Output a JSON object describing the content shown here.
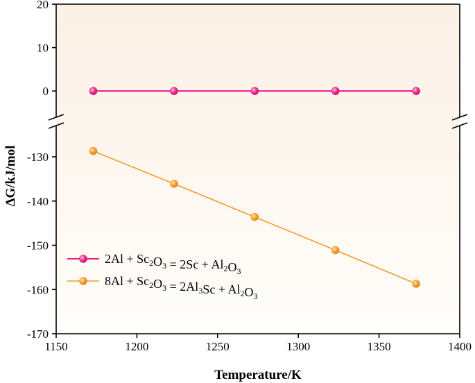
{
  "chart_data": {
    "type": "line",
    "title": "",
    "xlabel": "Temperature/K",
    "ylabel": "ΔG/kJ/mol",
    "xlim": [
      1150,
      1400
    ],
    "x_ticks": [
      1150,
      1200,
      1250,
      1300,
      1350,
      1400
    ],
    "y_axis_broken": true,
    "y_upper_segment": {
      "ylim": [
        -7,
        20
      ],
      "ticks": [
        0,
        10,
        20
      ]
    },
    "y_lower_segment": {
      "ylim": [
        -170,
        -122
      ],
      "ticks": [
        -130,
        -140,
        -150,
        -160,
        -170
      ]
    },
    "grid": false,
    "background": "#fdf6ee",
    "legend_position": "lower-left",
    "series": [
      {
        "name_parts": [
          {
            "t": "2Al + Sc"
          },
          {
            "t": "2",
            "sub": true
          },
          {
            "t": "O"
          },
          {
            "t": "3",
            "sub": true
          },
          {
            "t": " = 2Sc + Al"
          },
          {
            "t": "2",
            "sub": true
          },
          {
            "t": "O"
          },
          {
            "t": "3",
            "sub": true
          }
        ],
        "color": "#e8197f",
        "x": [
          1173,
          1223,
          1273,
          1323,
          1373
        ],
        "values": [
          0,
          0,
          0,
          0,
          0
        ]
      },
      {
        "name_parts": [
          {
            "t": "8Al + Sc"
          },
          {
            "t": "2",
            "sub": true
          },
          {
            "t": "O"
          },
          {
            "t": "3",
            "sub": true
          },
          {
            "t": " = 2Al"
          },
          {
            "t": "3",
            "sub": true
          },
          {
            "t": "Sc + Al"
          },
          {
            "t": "2",
            "sub": true
          },
          {
            "t": "O"
          },
          {
            "t": "3",
            "sub": true
          }
        ],
        "color": "#f39a2c",
        "x": [
          1173,
          1223,
          1273,
          1323,
          1373
        ],
        "values": [
          -128.7,
          -136.1,
          -143.6,
          -151.1,
          -158.7
        ]
      }
    ]
  }
}
